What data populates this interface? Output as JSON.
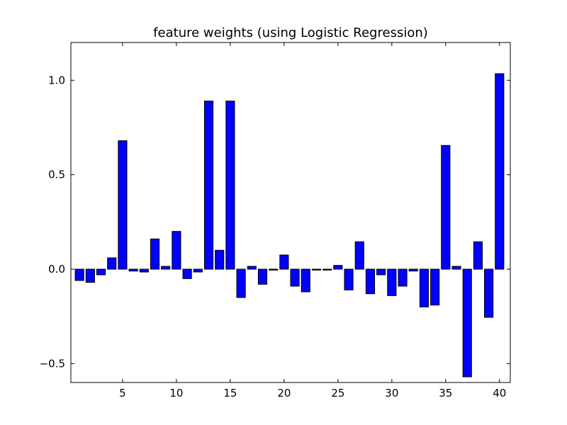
{
  "chart_data": {
    "type": "bar",
    "title": "feature weights (using Logistic Regression)",
    "xlabel": "",
    "ylabel": "",
    "x": [
      1,
      2,
      3,
      4,
      5,
      6,
      7,
      8,
      9,
      10,
      11,
      12,
      13,
      14,
      15,
      16,
      17,
      18,
      19,
      20,
      21,
      22,
      23,
      24,
      25,
      26,
      27,
      28,
      29,
      30,
      31,
      32,
      33,
      34,
      35,
      36,
      37,
      38,
      39,
      40
    ],
    "values": [
      -0.06,
      -0.07,
      -0.03,
      0.06,
      0.68,
      -0.01,
      -0.015,
      0.16,
      0.015,
      0.2,
      -0.05,
      -0.015,
      0.89,
      0.1,
      0.89,
      -0.15,
      0.015,
      -0.08,
      -0.005,
      0.075,
      -0.09,
      -0.12,
      -0.005,
      -0.005,
      0.02,
      -0.11,
      0.145,
      -0.13,
      -0.03,
      -0.14,
      -0.09,
      -0.01,
      -0.2,
      -0.19,
      0.655,
      0.015,
      -0.57,
      0.145,
      -0.255,
      1.035
    ],
    "xlim": [
      0.2,
      41.0
    ],
    "ylim": [
      -0.6,
      1.2
    ],
    "xticks": [
      5,
      10,
      15,
      20,
      25,
      30,
      35,
      40
    ],
    "xtick_labels": [
      "5",
      "10",
      "15",
      "20",
      "25",
      "30",
      "35",
      "40"
    ],
    "yticks": [
      -0.5,
      0.0,
      0.5,
      1.0
    ],
    "ytick_labels": [
      "−0.5",
      "0.0",
      "0.5",
      "1.0"
    ],
    "bar_color": "#0000ff",
    "edge_color": "#000000",
    "grid": false
  }
}
